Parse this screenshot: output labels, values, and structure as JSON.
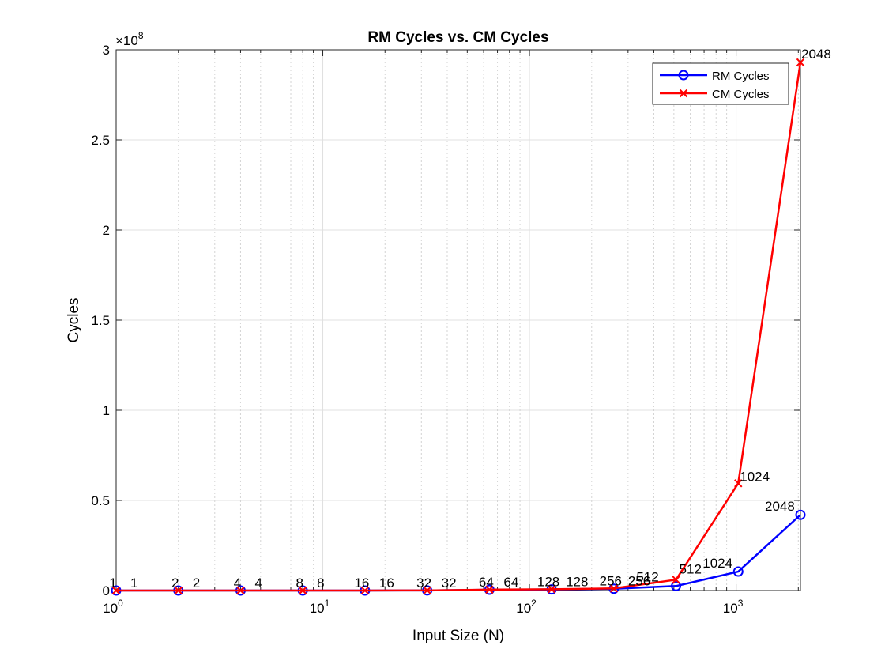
{
  "chart_data": {
    "type": "line",
    "title": "RM Cycles vs. CM Cycles",
    "xlabel": "Input Size (N)",
    "ylabel": "Cycles",
    "x_scale": "log",
    "xlim": [
      1,
      2048
    ],
    "ylim": [
      0,
      300000000
    ],
    "y_exponent_label": "×10",
    "y_exponent": "8",
    "x_ticks": [
      1,
      10,
      100,
      1000
    ],
    "x_tick_labels": [
      {
        "base": "10",
        "exp": "0"
      },
      {
        "base": "10",
        "exp": "1"
      },
      {
        "base": "10",
        "exp": "2"
      },
      {
        "base": "10",
        "exp": "3"
      }
    ],
    "y_ticks": [
      0,
      50000000,
      100000000,
      150000000,
      200000000,
      250000000,
      300000000
    ],
    "y_tick_labels": [
      "0",
      "0.5",
      "1",
      "1.5",
      "2",
      "2.5",
      "3"
    ],
    "grid": true,
    "legend_position": "top-right",
    "x": [
      1,
      2,
      4,
      8,
      16,
      32,
      64,
      128,
      256,
      512,
      1024,
      2048
    ],
    "series": [
      {
        "name": "RM Cycles",
        "color": "#0000ff",
        "marker": "circle",
        "values": [
          10,
          40,
          200,
          1200,
          8000,
          60000,
          450000,
          600000,
          1000000,
          2500000,
          10500000,
          42000000
        ],
        "point_labels": [
          "1",
          "2",
          "4",
          "8",
          "16",
          "32",
          "64",
          "128",
          "256",
          "512",
          "1024",
          "2048"
        ]
      },
      {
        "name": "CM Cycles",
        "color": "#ff0000",
        "marker": "x",
        "values": [
          10,
          40,
          220,
          1300,
          9000,
          70000,
          500000,
          700000,
          1200000,
          6000000,
          59500000,
          293000000
        ],
        "point_labels": [
          "1",
          "2",
          "4",
          "8",
          "16",
          "32",
          "64",
          "128",
          "256",
          "512",
          "1024",
          "2048"
        ]
      }
    ]
  }
}
